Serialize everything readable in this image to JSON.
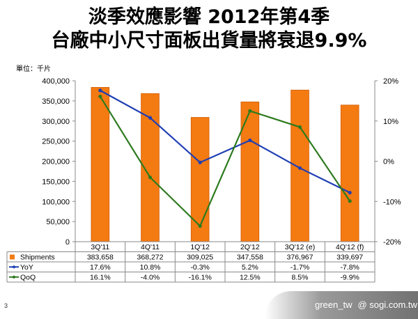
{
  "title": {
    "line1": "淡季效應影響 2012年第4季",
    "line2": "台廠中小尺寸面板出貨量將衰退9.9%"
  },
  "footer": {
    "page": "3",
    "author": "green_tw",
    "site": "@ sogi.com.tw"
  },
  "chart_data": {
    "type": "bar",
    "unit_label": "單位：千片",
    "categories": [
      "3Q'11",
      "4Q'11",
      "1Q'12",
      "2Q'12",
      "3Q'12 (e)",
      "4Q'12 (f)"
    ],
    "series": [
      {
        "name": "Shipments",
        "type": "bar",
        "axis": "left",
        "color": "#f47a12",
        "values": [
          383658,
          368272,
          309025,
          347558,
          376967,
          339697
        ],
        "labels": [
          "383,658",
          "368,272",
          "309,025",
          "347,558",
          "376,967",
          "339,697"
        ]
      },
      {
        "name": "YoY",
        "type": "line",
        "axis": "right",
        "color": "#1f3fb4",
        "values": [
          17.6,
          10.8,
          -0.3,
          5.2,
          -1.7,
          -7.8
        ],
        "labels": [
          "17.6%",
          "10.8%",
          "-0.3%",
          "5.2%",
          "-1.7%",
          "-7.8%"
        ]
      },
      {
        "name": "QoQ",
        "type": "line",
        "axis": "right",
        "color": "#2d7a1e",
        "values": [
          16.1,
          -4.0,
          -16.1,
          12.5,
          8.5,
          -9.9
        ],
        "labels": [
          "16.1%",
          "-4.0%",
          "-16.1%",
          "12.5%",
          "8.5%",
          "-9.9%"
        ]
      }
    ],
    "y_left": {
      "min": 0,
      "max": 400000,
      "ticks": [
        "0",
        "50,000",
        "100,000",
        "150,000",
        "200,000",
        "250,000",
        "300,000",
        "350,000",
        "400,000"
      ]
    },
    "y_right": {
      "min": -20,
      "max": 20,
      "ticks": [
        "-20%",
        "-10%",
        "0%",
        "10%",
        "20%"
      ]
    },
    "grid": false,
    "legend": "data table"
  }
}
